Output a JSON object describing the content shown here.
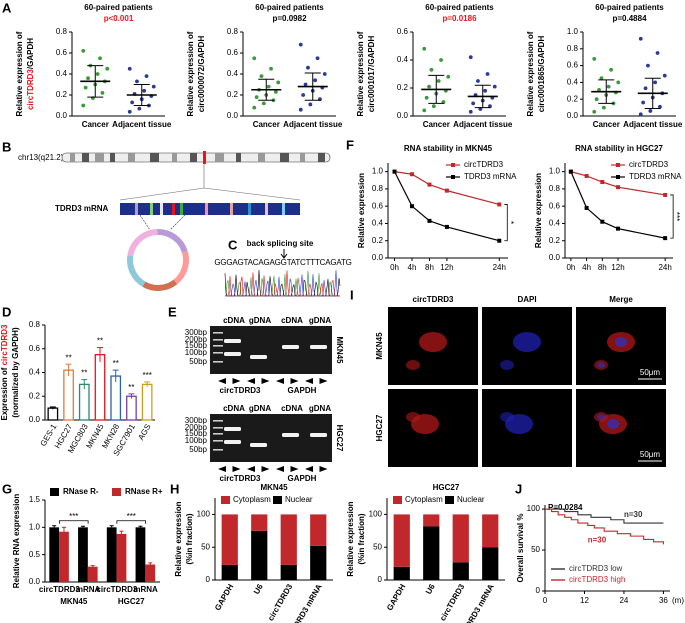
{
  "panel_labels": [
    "A",
    "B",
    "C",
    "D",
    "E",
    "F",
    "G",
    "H",
    "I",
    "J"
  ],
  "panel_B": {
    "chromosome": "chr13(q21.2)",
    "transcript": "TDRD3 mRNA"
  },
  "panel_C": {
    "label": "back splicing site",
    "sequence": "GGGAGTACAGAGGTATCTTTCAGATG"
  },
  "panel_E": {
    "gels": [
      {
        "cell_line": "MKN45",
        "lanes": [
          "cDNA",
          "gDNA",
          "cDNA",
          "gDNA"
        ],
        "ladder": [
          "300bp",
          "200bp",
          "150bp",
          "100bp",
          "50bp"
        ],
        "targets": [
          "circTDRD3",
          "GAPDH"
        ]
      },
      {
        "cell_line": "HGC27",
        "lanes": [
          "cDNA",
          "gDNA",
          "cDNA",
          "gDNA"
        ],
        "ladder": [
          "300bp",
          "200bp",
          "150bp",
          "100bp",
          "50bp"
        ],
        "targets": [
          "circTDRD3",
          "GAPDH"
        ]
      }
    ]
  },
  "panel_I": {
    "columns": [
      "circTDRD3",
      "DAPI",
      "Merge"
    ],
    "rows": [
      "MKN45",
      "HGC27"
    ],
    "scale_bar": "50μm"
  },
  "chart_data": [
    {
      "type": "strip",
      "title": "60-paired patients",
      "subtitle": "p<0.001",
      "subtitle_color": "#e8141c",
      "ylabel": [
        [
          {
            "text": "Relative expression of"
          }
        ],
        [
          {
            "text": "circTDRD3",
            "color": "#e8141c"
          },
          {
            "text": "/GAPDH"
          }
        ]
      ],
      "categories": [
        "Cancer",
        "Adjacent tissue"
      ],
      "colors": [
        "#3a9a3a",
        "#2b3a9a"
      ],
      "values": [
        [
          0.62,
          0.55,
          0.48,
          0.45,
          0.4,
          0.36,
          0.33,
          0.3,
          0.27,
          0.22,
          0.17,
          0.1
        ],
        [
          0.45,
          0.38,
          0.33,
          0.28,
          0.24,
          0.21,
          0.19,
          0.16,
          0.13,
          0.1,
          0.07,
          0.04
        ]
      ],
      "means": [
        0.33,
        0.2
      ],
      "sds": [
        0.15,
        0.1
      ],
      "ylim": [
        0,
        0.8
      ],
      "yticks": [
        {
          "value": 0,
          "label": "0.0"
        },
        0.2,
        0.4,
        0.6,
        0.8
      ]
    },
    {
      "type": "strip",
      "title": "60-paired patients",
      "subtitle": "p=0.0982",
      "subtitle_color": "#000000",
      "ylabel": [
        [
          {
            "text": "Relative expression of"
          }
        ],
        [
          {
            "text": "circ0000072/GAPDH"
          }
        ]
      ],
      "categories": [
        "Cancer",
        "Adjacent tissue"
      ],
      "colors": [
        "#3a9a3a",
        "#2b3a9a"
      ],
      "values": [
        [
          0.55,
          0.45,
          0.38,
          0.32,
          0.28,
          0.25,
          0.23,
          0.2,
          0.18,
          0.15,
          0.12,
          0.08
        ],
        [
          0.68,
          0.55,
          0.46,
          0.4,
          0.34,
          0.3,
          0.27,
          0.24,
          0.2,
          0.16,
          0.11,
          0.06
        ]
      ],
      "means": [
        0.25,
        0.28
      ],
      "sds": [
        0.1,
        0.13
      ],
      "ylim": [
        0,
        0.8
      ],
      "yticks": [
        {
          "value": 0,
          "label": "0.0"
        },
        0.2,
        0.4,
        0.6,
        0.8
      ]
    },
    {
      "type": "strip",
      "title": "60-paired patients",
      "subtitle": "p=0.0186",
      "subtitle_color": "#e8141c",
      "ylabel": [
        [
          {
            "text": "Relative expression of"
          }
        ],
        [
          {
            "text": "circ0001017/GAPDH"
          }
        ]
      ],
      "categories": [
        "Cancer",
        "Adjacent tissue"
      ],
      "colors": [
        "#3a9a3a",
        "#2b3a9a"
      ],
      "values": [
        [
          0.48,
          0.4,
          0.33,
          0.28,
          0.25,
          0.21,
          0.18,
          0.16,
          0.13,
          0.1,
          0.07,
          0.04
        ],
        [
          0.42,
          0.3,
          0.25,
          0.21,
          0.18,
          0.15,
          0.13,
          0.11,
          0.09,
          0.07,
          0.05,
          0.03
        ]
      ],
      "means": [
        0.19,
        0.14
      ],
      "sds": [
        0.1,
        0.08
      ],
      "ylim": [
        0,
        0.6
      ],
      "yticks": [
        {
          "value": 0,
          "label": "0.0"
        },
        0.2,
        0.4,
        0.6
      ]
    },
    {
      "type": "strip",
      "title": "60-paired patients",
      "subtitle": "p=0.4884",
      "subtitle_color": "#000000",
      "ylabel": [
        [
          {
            "text": "Relative expression of"
          }
        ],
        [
          {
            "text": "circ0001865/GAPDH"
          }
        ]
      ],
      "categories": [
        "Cancer",
        "Adjacent tissue"
      ],
      "colors": [
        "#3a9a3a",
        "#2b3a9a"
      ],
      "values": [
        [
          0.68,
          0.55,
          0.45,
          0.4,
          0.35,
          0.31,
          0.28,
          0.25,
          0.2,
          0.15,
          0.1,
          0.05
        ],
        [
          0.92,
          0.75,
          0.6,
          0.48,
          0.4,
          0.33,
          0.27,
          0.22,
          0.16,
          0.11,
          0.06,
          0.02
        ]
      ],
      "means": [
        0.29,
        0.27
      ],
      "sds": [
        0.14,
        0.18
      ],
      "ylim": [
        0,
        1.0
      ],
      "yticks": [
        {
          "value": 0,
          "label": "0.0"
        },
        0.2,
        0.4,
        0.6,
        0.8,
        {
          "value": 1,
          "label": "1.0"
        }
      ]
    },
    {
      "type": "bar",
      "ylabel": [
        [
          {
            "text": "Expression of "
          },
          {
            "text": "circTDRD3",
            "color": "#e8141c"
          }
        ],
        [
          {
            "text": "(normalized by GAPDH)"
          }
        ]
      ],
      "categories": [
        "GES-1",
        "HGC27",
        "MGC803",
        "MKN45",
        "MKN28",
        "SGC7901",
        "AGS"
      ],
      "values": [
        0.1,
        0.42,
        0.3,
        0.55,
        0.37,
        0.2,
        0.3
      ],
      "errors": [
        0.01,
        0.05,
        0.04,
        0.06,
        0.05,
        0.02,
        0.02
      ],
      "colors": [
        "#000000",
        "#e07b39",
        "#2a8a6a",
        "#e8141c",
        "#2b5fb0",
        "#7a3fa0",
        "#c8a020"
      ],
      "annotations": [
        null,
        "**",
        "**",
        "**",
        "**",
        "**",
        "***"
      ],
      "ylim": [
        0,
        0.8
      ],
      "yticks": [
        {
          "value": 0,
          "label": "0.0"
        },
        0.2,
        0.4,
        0.6,
        0.8
      ]
    },
    {
      "type": "line",
      "title": "RNA stability in MKN45",
      "ylabel": [
        [
          {
            "text": "Relative expression"
          }
        ]
      ],
      "x": [
        0,
        4,
        8,
        12,
        24
      ],
      "xlim": [
        -1.5,
        26
      ],
      "xticks": [
        {
          "value": 0,
          "label": "0h"
        },
        {
          "value": 4,
          "label": "4h"
        },
        {
          "value": 8,
          "label": "8h"
        },
        {
          "value": 12,
          "label": "12h"
        },
        {
          "value": 24,
          "label": "24h"
        }
      ],
      "ylim": [
        0,
        1.1
      ],
      "yticks": [
        {
          "value": 0,
          "label": "0.0"
        },
        0.2,
        0.4,
        0.6,
        0.8,
        {
          "value": 1,
          "label": "1.0"
        }
      ],
      "series": [
        {
          "name": "circTDRD3",
          "color": "#c0282c",
          "values": [
            1,
            0.97,
            0.85,
            0.78,
            0.62
          ]
        },
        {
          "name": "TDRD3 mRNA",
          "color": "#000000",
          "values": [
            1,
            0.6,
            0.43,
            0.36,
            0.2
          ]
        }
      ],
      "annotation": "*"
    },
    {
      "type": "line",
      "title": "RNA stability in HGC27",
      "ylabel": [
        [
          {
            "text": "Relative expression"
          }
        ]
      ],
      "x": [
        0,
        4,
        8,
        12,
        24
      ],
      "xlim": [
        -1.5,
        26
      ],
      "xticks": [
        {
          "value": 0,
          "label": "0h"
        },
        {
          "value": 4,
          "label": "4h"
        },
        {
          "value": 8,
          "label": "8h"
        },
        {
          "value": 12,
          "label": "12h"
        },
        {
          "value": 24,
          "label": "24h"
        }
      ],
      "ylim": [
        0,
        1.1
      ],
      "yticks": [
        {
          "value": 0,
          "label": "0.0"
        },
        0.2,
        0.4,
        0.6,
        0.8,
        {
          "value": 1,
          "label": "1.0"
        }
      ],
      "series": [
        {
          "name": "circTDRD3",
          "color": "#c0282c",
          "values": [
            1,
            0.95,
            0.88,
            0.82,
            0.73
          ]
        },
        {
          "name": "TDRD3 mRNA",
          "color": "#000000",
          "values": [
            1,
            0.58,
            0.42,
            0.34,
            0.23
          ]
        }
      ],
      "annotation": "***"
    },
    {
      "type": "grouped_bar",
      "ylabel": [
        [
          {
            "text": "Relative RNA expression"
          }
        ]
      ],
      "categories": [
        "circTDRD3",
        "mRNA",
        "circTDRD3",
        "mRNA"
      ],
      "groups": [
        "MKN45",
        "HGC27"
      ],
      "annotations": [
        "***",
        "***"
      ],
      "series": [
        {
          "name": "RNase R-",
          "color": "#000000",
          "values": [
            1,
            1,
            1,
            1
          ],
          "errors": [
            0.03,
            0.02,
            0.03,
            0.02
          ]
        },
        {
          "name": "RNase R+",
          "color": "#c0282c",
          "values": [
            0.92,
            0.28,
            0.88,
            0.32
          ],
          "errors": [
            0.08,
            0.02,
            0.05,
            0.03
          ]
        }
      ],
      "ylim": [
        0,
        1.5
      ],
      "yticks": [
        {
          "value": 0,
          "label": "0.0"
        },
        0.5,
        {
          "value": 1,
          "label": "1.0"
        },
        1.5
      ]
    },
    {
      "type": "stacked_bar",
      "title": "MKN45",
      "ylabel": [
        [
          {
            "text": "Relative expression"
          }
        ],
        [
          {
            "text": "(%in fraction)"
          }
        ]
      ],
      "categories": [
        "GAPDH",
        "U6",
        "circTDRD3",
        "TDRD3 mRNA"
      ],
      "series": [
        {
          "name": "Cytoplasm",
          "color": "#c0282c",
          "values": [
            77,
            25,
            77,
            48
          ]
        },
        {
          "name": "Nuclear",
          "color": "#000000",
          "values": [
            23,
            75,
            23,
            52
          ]
        }
      ],
      "ylim": [
        0,
        125
      ],
      "yticks": [
        0,
        50,
        100
      ]
    },
    {
      "type": "stacked_bar",
      "title": "HGC27",
      "ylabel": [
        [
          {
            "text": "Relative expression"
          }
        ],
        [
          {
            "text": "(%in fraction)"
          }
        ]
      ],
      "categories": [
        "GAPDH",
        "U6",
        "circTDRD3",
        "TDRD3 mRNA"
      ],
      "series": [
        {
          "name": "Cytoplasm",
          "color": "#c0282c",
          "values": [
            80,
            18,
            73,
            50
          ]
        },
        {
          "name": "Nuclear",
          "color": "#000000",
          "values": [
            20,
            82,
            27,
            50
          ]
        }
      ],
      "ylim": [
        0,
        125
      ],
      "yticks": [
        0,
        50,
        100
      ]
    },
    {
      "type": "step",
      "ylabel": [
        [
          {
            "text": "Overall survival %"
          }
        ]
      ],
      "annotation": "P=0.0284",
      "xlabel": "(m)",
      "xlim": [
        0,
        38
      ],
      "xticks": [
        0,
        12,
        24,
        36
      ],
      "ylim": [
        0,
        105
      ],
      "yticks": [
        0,
        50,
        100
      ],
      "series": [
        {
          "name": "circTDRD3 low",
          "color": "#333333",
          "label": "n=30",
          "x": [
            0,
            6,
            10,
            14,
            20,
            24,
            36
          ],
          "values": [
            100,
            97,
            93,
            90,
            87,
            83,
            83
          ]
        },
        {
          "name": "circTDRD3 high",
          "color": "#c0282c",
          "label": "n=30",
          "x": [
            0,
            2,
            4,
            6,
            8,
            10,
            13,
            15,
            18,
            22,
            26,
            30,
            33,
            36
          ],
          "values": [
            100,
            97,
            93,
            90,
            87,
            83,
            80,
            77,
            73,
            70,
            67,
            63,
            60,
            57
          ]
        }
      ]
    }
  ]
}
